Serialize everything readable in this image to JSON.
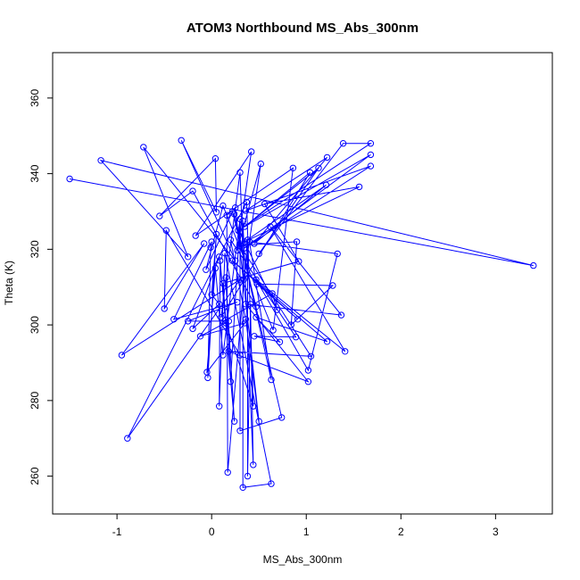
{
  "chart_data": {
    "type": "line",
    "title": "ATOM3 Northbound MS_Abs_300nm",
    "xlabel": "MS_Abs_300nm",
    "ylabel": "Theta (K)",
    "xlim": [
      -1.68,
      3.6
    ],
    "ylim": [
      250,
      372
    ],
    "xticks": [
      -1,
      0,
      1,
      2,
      3
    ],
    "yticks": [
      260,
      280,
      300,
      320,
      340,
      360
    ],
    "grid": false,
    "legend": "none",
    "series_color": "#0000ff",
    "points": [
      [
        -1.5,
        338.6
      ],
      [
        3.4,
        315.7
      ],
      [
        -1.17,
        343.5
      ],
      [
        -0.25,
        318.0
      ],
      [
        -0.72,
        347.0
      ],
      [
        0.25,
        317.0
      ],
      [
        -0.32,
        348.8
      ],
      [
        0.05,
        329.8
      ],
      [
        0.04,
        344.0
      ],
      [
        -0.55,
        328.8
      ],
      [
        -0.2,
        335.4
      ],
      [
        0.47,
        304.8
      ],
      [
        0.22,
        330.0
      ],
      [
        -0.06,
        314.6
      ],
      [
        0.12,
        331.5
      ],
      [
        0.65,
        298.6
      ],
      [
        0.86,
        341.5
      ],
      [
        -0.17,
        323.6
      ],
      [
        0.42,
        345.8
      ],
      [
        0.27,
        319.7
      ],
      [
        0.52,
        342.6
      ],
      [
        0.34,
        312.0
      ],
      [
        0.3,
        340.3
      ],
      [
        0.1,
        302.0
      ],
      [
        1.04,
        340.3
      ],
      [
        0.35,
        326.0
      ],
      [
        1.13,
        341.5
      ],
      [
        0.5,
        318.8
      ],
      [
        1.39,
        348.0
      ],
      [
        1.68,
        348.0
      ],
      [
        0.28,
        325.0
      ],
      [
        1.68,
        345.0
      ],
      [
        0.34,
        320.2
      ],
      [
        1.68,
        342.0
      ],
      [
        0.36,
        330.2
      ],
      [
        1.22,
        344.3
      ],
      [
        0.45,
        321.5
      ],
      [
        1.21,
        337.0
      ],
      [
        0.35,
        322.0
      ],
      [
        1.56,
        336.5
      ],
      [
        0.56,
        332.0
      ],
      [
        0.92,
        316.8
      ],
      [
        0.12,
        311.0
      ],
      [
        0.15,
        301.3
      ],
      [
        0.64,
        308.3
      ],
      [
        0.69,
        304.0
      ],
      [
        0.3,
        324.5
      ],
      [
        0.3,
        272.0
      ],
      [
        0.74,
        275.5
      ],
      [
        0.24,
        329.3
      ],
      [
        0.63,
        285.5
      ],
      [
        0.4,
        322.0
      ],
      [
        1.33,
        318.8
      ],
      [
        1.02,
        288.0
      ],
      [
        0.47,
        312.0
      ],
      [
        1.41,
        293.0
      ],
      [
        0.62,
        326.0
      ],
      [
        1.37,
        302.6
      ],
      [
        0.36,
        305.5
      ],
      [
        1.02,
        285.0
      ],
      [
        0.18,
        293.0
      ],
      [
        1.05,
        291.7
      ],
      [
        0.3,
        321.0
      ],
      [
        0.9,
        322.0
      ],
      [
        0.84,
        300.0
      ],
      [
        1.28,
        310.4
      ],
      [
        0.48,
        310.8
      ],
      [
        0.91,
        301.5
      ],
      [
        0.22,
        317.0
      ],
      [
        1.22,
        295.6
      ],
      [
        0.47,
        302.0
      ],
      [
        0.72,
        295.5
      ],
      [
        0.45,
        297.0
      ],
      [
        0.89,
        296.8
      ],
      [
        0.2,
        322.5
      ],
      [
        0.36,
        301.5
      ],
      [
        0.5,
        274.5
      ],
      [
        0.25,
        331.0
      ],
      [
        0.16,
        329.0
      ],
      [
        0.17,
        261.0
      ],
      [
        0.38,
        322.5
      ],
      [
        0.38,
        260.0
      ],
      [
        0.41,
        305.5
      ],
      [
        0.44,
        263.0
      ],
      [
        0.33,
        327.5
      ],
      [
        0.33,
        257.0
      ],
      [
        0.63,
        258.0
      ],
      [
        0.14,
        319.0
      ],
      [
        0.08,
        278.5
      ],
      [
        0.09,
        317.0
      ],
      [
        0.24,
        274.5
      ],
      [
        0.15,
        312.5
      ],
      [
        0.2,
        285.0
      ],
      [
        0.3,
        328.0
      ],
      [
        0.12,
        292.0
      ],
      [
        0.04,
        315.0
      ],
      [
        -0.05,
        287.5
      ],
      [
        0.35,
        300.5
      ],
      [
        -0.12,
        297.0
      ],
      [
        0.18,
        301.0
      ],
      [
        -0.25,
        301.0
      ],
      [
        0.27,
        306.0
      ],
      [
        -0.4,
        301.5
      ],
      [
        0.0,
        322.0
      ],
      [
        -0.01,
        320.5
      ],
      [
        -0.04,
        286.0
      ],
      [
        0.05,
        324.0
      ],
      [
        0.0,
        308.0
      ],
      [
        0.08,
        305.5
      ],
      [
        -0.2,
        299.0
      ],
      [
        0.08,
        318.0
      ],
      [
        0.15,
        300.5
      ],
      [
        0.44,
        278.5
      ],
      [
        0.37,
        332.5
      ],
      [
        -0.89,
        270.0
      ],
      [
        0.3,
        312.0
      ],
      [
        -0.95,
        292.0
      ],
      [
        -0.08,
        321.5
      ],
      [
        -0.5,
        304.3
      ],
      [
        -0.48,
        325.0
      ],
      [
        0.3,
        292.0
      ]
    ]
  }
}
